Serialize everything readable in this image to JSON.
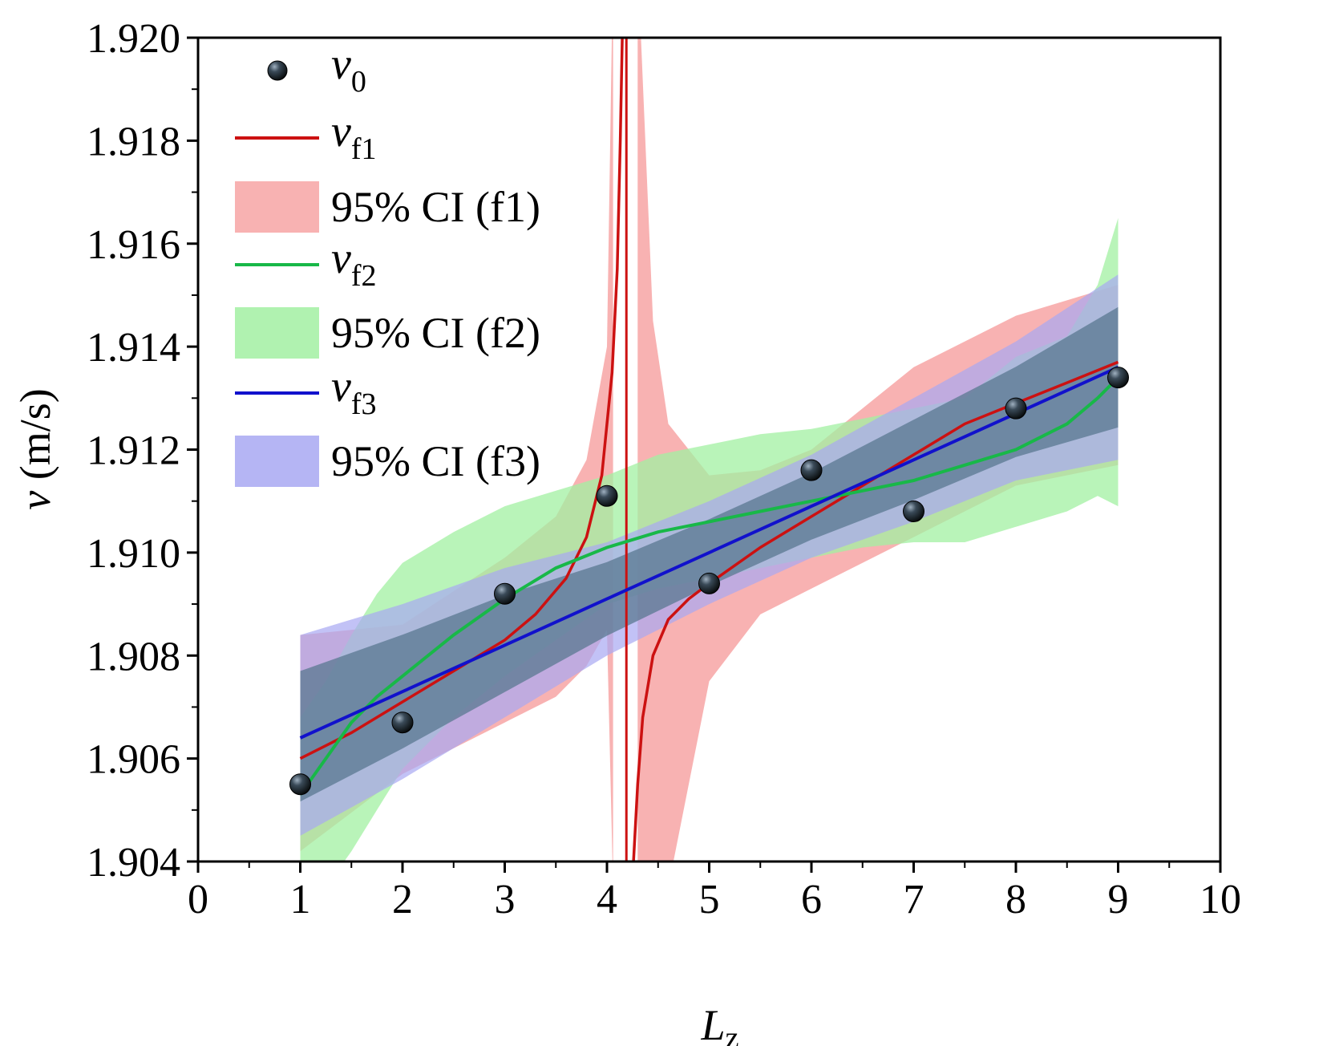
{
  "chart_data": {
    "type": "line",
    "title": "",
    "xlabel": "L",
    "xlabel_sub": "z",
    "ylabel": "v (m/s)",
    "ylabel_symbol": "v",
    "ylabel_unit": " (m/s)",
    "xlim": [
      0,
      10
    ],
    "ylim": [
      1.904,
      1.92
    ],
    "x_ticks": [
      0,
      1,
      2,
      3,
      4,
      5,
      6,
      7,
      8,
      9,
      10
    ],
    "y_ticks": [
      1.904,
      1.906,
      1.908,
      1.91,
      1.912,
      1.914,
      1.916,
      1.918,
      1.92
    ],
    "x_tick_labels": [
      "0",
      "1",
      "2",
      "3",
      "4",
      "5",
      "6",
      "7",
      "8",
      "9",
      "10"
    ],
    "y_tick_labels": [
      "1.904",
      "1.906",
      "1.908",
      "1.910",
      "1.912",
      "1.914",
      "1.916",
      "1.918",
      "1.920"
    ],
    "legend_position": "top-left",
    "colors": {
      "points": "#1a1a1a",
      "f1_line": "#cc1111",
      "f1_band": "#f7a5a5",
      "f2_line": "#18b848",
      "f2_band": "#a2f0a2",
      "f3_line": "#1111cc",
      "f3_band": "#a8a8f2",
      "overlap_band": "#5a7890"
    },
    "legend": [
      {
        "key": "v0",
        "symbol": "v",
        "sub": "0",
        "type": "marker"
      },
      {
        "key": "vf1",
        "symbol": "v",
        "sub": "f1",
        "type": "line"
      },
      {
        "key": "ci1",
        "label": "95% CI (f1)",
        "type": "band"
      },
      {
        "key": "vf2",
        "symbol": "v",
        "sub": "f2",
        "type": "line"
      },
      {
        "key": "ci2",
        "label": "95% CI (f2)",
        "type": "band"
      },
      {
        "key": "vf3",
        "symbol": "v",
        "sub": "f3",
        "type": "line"
      },
      {
        "key": "ci3",
        "label": "95% CI (f3)",
        "type": "band"
      }
    ],
    "points": {
      "name": "v0",
      "x": [
        1,
        2,
        3,
        4,
        5,
        6,
        7,
        8,
        9
      ],
      "y": [
        1.9055,
        1.9067,
        1.9092,
        1.9111,
        1.9094,
        1.9116,
        1.9108,
        1.9128,
        1.9134
      ]
    },
    "f1": {
      "name": "vf1",
      "asymptote_x": 4.19,
      "left_x": [
        1.0,
        1.5,
        2.0,
        2.5,
        3.0,
        3.3,
        3.6,
        3.8,
        3.95,
        4.05,
        4.1,
        4.13,
        4.15,
        4.16
      ],
      "left_y": [
        1.906,
        1.9065,
        1.9071,
        1.9077,
        1.9083,
        1.9088,
        1.9095,
        1.9103,
        1.9115,
        1.9135,
        1.9155,
        1.918,
        1.92,
        1.9215
      ],
      "right_x": [
        4.24,
        4.26,
        4.3,
        4.35,
        4.45,
        4.6,
        4.8,
        5.0,
        5.5,
        6.0,
        6.5,
        7.0,
        7.5,
        8.0,
        8.5,
        9.0
      ],
      "right_y": [
        1.9025,
        1.904,
        1.9055,
        1.9068,
        1.908,
        1.9087,
        1.9091,
        1.9094,
        1.9101,
        1.9107,
        1.9113,
        1.9119,
        1.9125,
        1.9129,
        1.9133,
        1.9137
      ],
      "band_left_x": [
        1.0,
        2.0,
        3.0,
        3.5,
        3.8,
        4.0,
        4.06
      ],
      "band_left_lo": [
        1.9042,
        1.9057,
        1.9067,
        1.9072,
        1.9078,
        1.9085,
        1.9035
      ],
      "band_left_hi": [
        1.9084,
        1.9086,
        1.9099,
        1.9107,
        1.9118,
        1.914,
        1.9215
      ],
      "band_right_x": [
        4.3,
        4.45,
        4.6,
        5.0,
        5.5,
        6.0,
        7.0,
        8.0,
        9.0
      ],
      "band_right_lo": [
        1.9035,
        1.9035,
        1.9035,
        1.9075,
        1.9088,
        1.9093,
        1.9103,
        1.9113,
        1.9117
      ],
      "band_right_hi": [
        1.9215,
        1.9145,
        1.9125,
        1.9115,
        1.9116,
        1.912,
        1.9136,
        1.9146,
        1.9152
      ]
    },
    "f2": {
      "name": "vf2",
      "x": [
        1.0,
        1.25,
        1.5,
        1.75,
        2.0,
        2.5,
        3.0,
        3.5,
        4.0,
        4.5,
        5.0,
        5.5,
        6.0,
        6.5,
        7.0,
        7.5,
        8.0,
        8.5,
        8.8,
        9.0
      ],
      "y": [
        1.9053,
        1.906,
        1.9067,
        1.9072,
        1.9076,
        1.9084,
        1.9091,
        1.9097,
        1.9101,
        1.9104,
        1.9106,
        1.9108,
        1.911,
        1.9112,
        1.9114,
        1.9117,
        1.912,
        1.9125,
        1.913,
        1.9134
      ],
      "lo": [
        1.904,
        1.9035,
        1.9042,
        1.905,
        1.9058,
        1.9068,
        1.9076,
        1.9083,
        1.909,
        1.9093,
        1.9095,
        1.9097,
        1.9099,
        1.9101,
        1.9102,
        1.9102,
        1.9105,
        1.9108,
        1.9111,
        1.9109
      ],
      "hi": [
        1.9068,
        1.9075,
        1.9084,
        1.9092,
        1.9098,
        1.9104,
        1.9109,
        1.9112,
        1.9115,
        1.9119,
        1.9121,
        1.9123,
        1.9124,
        1.9126,
        1.9128,
        1.913,
        1.9138,
        1.9142,
        1.9152,
        1.9165
      ]
    },
    "f3": {
      "name": "vf3",
      "x": [
        1.0,
        2.0,
        3.0,
        4.0,
        5.0,
        6.0,
        7.0,
        8.0,
        9.0
      ],
      "y": [
        1.9064,
        1.9073,
        1.9082,
        1.9091,
        1.91,
        1.9109,
        1.9118,
        1.9127,
        1.9136
      ],
      "lo": [
        1.9045,
        1.9056,
        1.9068,
        1.908,
        1.909,
        1.9099,
        1.9106,
        1.9114,
        1.9118
      ],
      "hi": [
        1.9084,
        1.909,
        1.9097,
        1.9102,
        1.911,
        1.9119,
        1.913,
        1.9141,
        1.9154
      ]
    }
  }
}
